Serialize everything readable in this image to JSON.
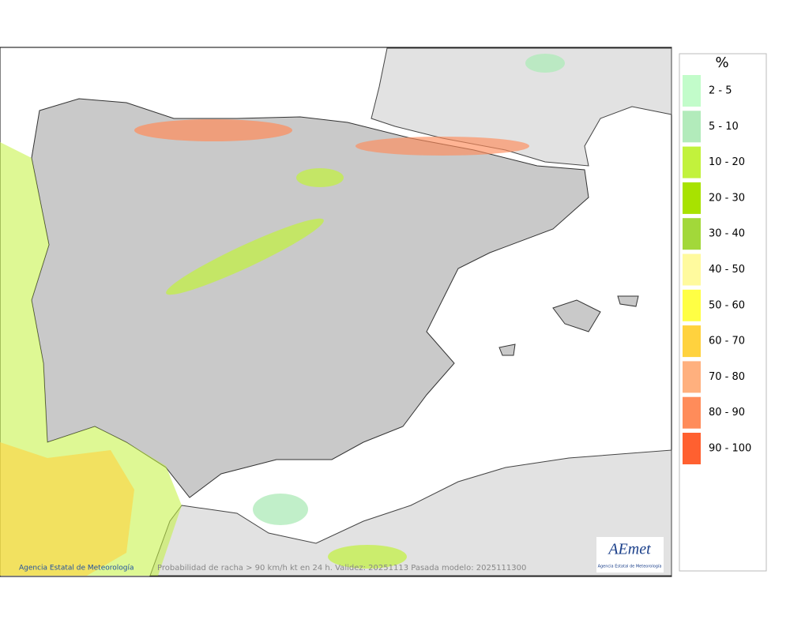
{
  "map": {
    "credit": "Agencia Estatal de Meteorología",
    "caption": "Probabilidad de racha > 90 km/h kt en 24 h. Validez: 20251113 Pasada modelo: 2025111300"
  },
  "logo": {
    "name": "AEmet",
    "subtitle": "Agencia Estatal de Meteorología"
  },
  "legend": {
    "title": "%",
    "items": [
      {
        "label": "2 - 5",
        "color": "#c2fcca"
      },
      {
        "label": "5 - 10",
        "color": "#b2ebbb"
      },
      {
        "label": "10 - 20",
        "color": "#c2f23c"
      },
      {
        "label": "20 - 30",
        "color": "#a8e200"
      },
      {
        "label": "30 - 40",
        "color": "#a2d83a"
      },
      {
        "label": "40 - 50",
        "color": "#fffa9e"
      },
      {
        "label": "50 - 60",
        "color": "#ffff44"
      },
      {
        "label": "60 - 70",
        "color": "#ffd23e"
      },
      {
        "label": "70 - 80",
        "color": "#ffb07e"
      },
      {
        "label": "80 - 90",
        "color": "#ff8c5a"
      },
      {
        "label": "90 - 100",
        "color": "#ff6030"
      }
    ]
  }
}
